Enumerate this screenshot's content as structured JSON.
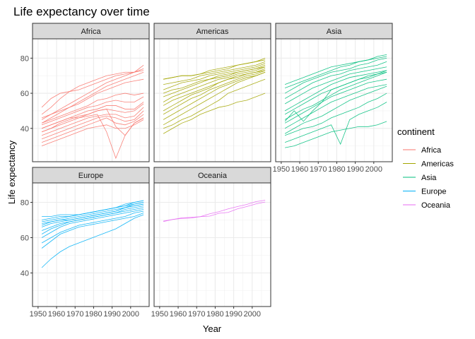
{
  "chart_data": {
    "type": "line",
    "title": "Life expectancy over time",
    "xlabel": "Year",
    "ylabel": "Life expectancy",
    "xlim": [
      1947,
      2010
    ],
    "ylim": [
      21,
      91
    ],
    "x_ticks": [
      1950,
      1960,
      1970,
      1980,
      1990,
      2000
    ],
    "y_ticks": [
      40,
      60,
      80
    ],
    "years": [
      1952,
      1957,
      1962,
      1967,
      1972,
      1977,
      1982,
      1987,
      1992,
      1997,
      2002,
      2007
    ],
    "legend": {
      "title": "continent",
      "placement": "right",
      "items": [
        "Africa",
        "Americas",
        "Asia",
        "Europe",
        "Oceania"
      ]
    },
    "colors": {
      "Africa": "#F8766D",
      "Americas": "#A3A500",
      "Asia": "#00BF7D",
      "Europe": "#00B0F6",
      "Oceania": "#E76BF3"
    },
    "grid": true,
    "facets": [
      {
        "name": "Africa",
        "series": [
          {
            "values": [
              30,
              32,
              34,
              36,
              38,
              40,
              41,
              42,
              40,
              40,
              42,
              45
            ]
          },
          {
            "values": [
              32,
              34,
              36,
              38,
              40,
              42,
              44,
              46,
              43,
              42,
              44,
              48
            ]
          },
          {
            "values": [
              34,
              36,
              38,
              40,
              42,
              44,
              46,
              47,
              46,
              44,
              45,
              50
            ]
          },
          {
            "values": [
              36,
              38,
              40,
              42,
              44,
              46,
              47,
              48,
              48,
              46,
              47,
              52
            ]
          },
          {
            "values": [
              38,
              40,
              42,
              44,
              46,
              48,
              50,
              51,
              50,
              49,
              50,
              54
            ]
          },
          {
            "values": [
              40,
              42,
              44,
              46,
              48,
              50,
              51,
              53,
              53,
              51,
              51,
              55
            ]
          },
          {
            "values": [
              42,
              44,
              46,
              48,
              50,
              52,
              53,
              55,
              56,
              55,
              55,
              58
            ]
          },
          {
            "values": [
              43,
              45,
              47,
              49,
              51,
              53,
              56,
              57,
              59,
              60,
              59,
              60
            ]
          },
          {
            "values": [
              46,
              48,
              50,
              52,
              54,
              57,
              60,
              62,
              64,
              66,
              67,
              68
            ]
          },
          {
            "values": [
              52,
              57,
              60,
              61,
              62,
              64,
              66,
              68,
              70,
              71,
              72,
              73
            ]
          },
          {
            "values": [
              43,
              46,
              49,
              52,
              55,
              58,
              61,
              64,
              66,
              68,
              70,
              72
            ]
          },
          {
            "values": [
              38,
              40,
              43,
              45,
              47,
              48,
              50,
              51,
              41,
              36,
              43,
              46
            ]
          },
          {
            "values": [
              40,
              42,
              44,
              46,
              46,
              47,
              48,
              38,
              23,
              36,
              43,
              46
            ]
          },
          {
            "values": [
              48,
              52,
              57,
              61,
              64,
              66,
              68,
              70,
              71,
              72,
              72,
              74
            ]
          },
          {
            "values": [
              45,
              48,
              51,
              54,
              57,
              60,
              63,
              66,
              68,
              70,
              72,
              76
            ]
          }
        ]
      },
      {
        "name": "Americas",
        "series": [
          {
            "values": [
              37,
              40,
              43,
              45,
              48,
              50,
              52,
              53,
              55,
              56,
              58,
              60
            ]
          },
          {
            "values": [
              40,
              42,
              45,
              47,
              50,
              53,
              56,
              60,
              62,
              64,
              66,
              68
            ]
          },
          {
            "values": [
              42,
              45,
              48,
              51,
              54,
              57,
              60,
              63,
              66,
              68,
              70,
              72
            ]
          },
          {
            "values": [
              45,
              48,
              51,
              54,
              57,
              60,
              63,
              65,
              67,
              69,
              70,
              72
            ]
          },
          {
            "values": [
              48,
              51,
              54,
              57,
              59,
              62,
              64,
              66,
              68,
              70,
              71,
              73
            ]
          },
          {
            "values": [
              50,
              53,
              56,
              59,
              61,
              63,
              66,
              68,
              69,
              71,
              72,
              73
            ]
          },
          {
            "values": [
              53,
              56,
              58,
              60,
              62,
              64,
              66,
              68,
              70,
              71,
              72,
              74
            ]
          },
          {
            "values": [
              55,
              58,
              60,
              62,
              64,
              66,
              68,
              69,
              71,
              72,
              73,
              75
            ]
          },
          {
            "values": [
              58,
              60,
              62,
              64,
              66,
              68,
              69,
              70,
              72,
              73,
              74,
              75
            ]
          },
          {
            "values": [
              60,
              62,
              63,
              65,
              67,
              68,
              70,
              71,
              72,
              73,
              74,
              76
            ]
          },
          {
            "values": [
              62,
              64,
              66,
              67,
              68,
              70,
              71,
              72,
              73,
              74,
              75,
              77
            ]
          },
          {
            "values": [
              65,
              66,
              67,
              68,
              70,
              71,
              72,
              73,
              74,
              75,
              76,
              78
            ]
          },
          {
            "values": [
              68,
              69,
              70,
              70,
              71,
              72,
              73,
              74,
              76,
              77,
              78,
              79
            ]
          },
          {
            "values": [
              68,
              69,
              70,
              70,
              71,
              73,
              74,
              75,
              76,
              77,
              78,
              80
            ]
          }
        ]
      },
      {
        "name": "Asia",
        "series": [
          {
            "values": [
              29,
              30,
              32,
              34,
              36,
              38,
              39,
              40,
              41,
              41,
              42,
              44
            ]
          },
          {
            "values": [
              32,
              34,
              36,
              38,
              40,
              42,
              31,
              45,
              48,
              50,
              52,
              55
            ]
          },
          {
            "values": [
              36,
              38,
              40,
              41,
              43,
              46,
              48,
              50,
              52,
              55,
              57,
              60
            ]
          },
          {
            "values": [
              37,
              40,
              43,
              45,
              47,
              50,
              53,
              56,
              58,
              60,
              62,
              64
            ]
          },
          {
            "values": [
              40,
              43,
              46,
              49,
              52,
              55,
              57,
              59,
              61,
              63,
              64,
              65
            ]
          },
          {
            "values": [
              43,
              46,
              49,
              52,
              55,
              58,
              60,
              62,
              64,
              66,
              67,
              68
            ]
          },
          {
            "values": [
              44,
              50,
              44,
              50,
              55,
              62,
              64,
              66,
              68,
              70,
              71,
              72
            ]
          },
          {
            "values": [
              45,
              48,
              51,
              53,
              56,
              59,
              62,
              64,
              66,
              68,
              70,
              72
            ]
          },
          {
            "values": [
              48,
              51,
              54,
              57,
              60,
              62,
              64,
              66,
              68,
              69,
              71,
              73
            ]
          },
          {
            "values": [
              50,
              53,
              56,
              59,
              62,
              65,
              67,
              69,
              70,
              71,
              72,
              73
            ]
          },
          {
            "values": [
              54,
              57,
              60,
              63,
              65,
              67,
              69,
              71,
              72,
              73,
              74,
              75
            ]
          },
          {
            "values": [
              57,
              60,
              63,
              66,
              68,
              70,
              71,
              73,
              74,
              75,
              76,
              78
            ]
          },
          {
            "values": [
              60,
              63,
              66,
              68,
              70,
              72,
              73,
              74,
              76,
              77,
              79,
              80
            ]
          },
          {
            "values": [
              63,
              65,
              67,
              69,
              71,
              73,
              75,
              76,
              78,
              79,
              81,
              82
            ]
          },
          {
            "values": [
              65,
              67,
              69,
              71,
              73,
              75,
              76,
              77,
              78,
              79,
              80,
              81
            ]
          }
        ]
      },
      {
        "name": "Europe",
        "series": [
          {
            "values": [
              43,
              48,
              52,
              55,
              57,
              59,
              61,
              63,
              65,
              68,
              71,
              73
            ]
          },
          {
            "values": [
              54,
              58,
              62,
              64,
              66,
              67,
              68,
              69,
              70,
              71,
              72,
              74
            ]
          },
          {
            "values": [
              57,
              60,
              63,
              65,
              67,
              68,
              69,
              70,
              71,
              72,
              74,
              75
            ]
          },
          {
            "values": [
              60,
              63,
              66,
              68,
              69,
              70,
              71,
              72,
              73,
              74,
              75,
              76
            ]
          },
          {
            "values": [
              62,
              65,
              67,
              69,
              70,
              71,
              72,
              73,
              74,
              75,
              76,
              77
            ]
          },
          {
            "values": [
              64,
              66,
              68,
              69,
              70,
              71,
              72,
              73,
              74,
              76,
              77,
              78
            ]
          },
          {
            "values": [
              66,
              68,
              69,
              70,
              71,
              72,
              73,
              74,
              75,
              77,
              78,
              79
            ]
          },
          {
            "values": [
              67,
              69,
              70,
              70,
              71,
              72,
              73,
              74,
              75,
              77,
              78,
              79
            ]
          },
          {
            "values": [
              68,
              69,
              70,
              71,
              72,
              73,
              74,
              75,
              76,
              77,
              79,
              80
            ]
          },
          {
            "values": [
              69,
              70,
              71,
              72,
              73,
              74,
              75,
              76,
              77,
              78,
              79,
              80
            ]
          },
          {
            "values": [
              70,
              71,
              72,
              72,
              73,
              74,
              75,
              76,
              77,
              78,
              80,
              81
            ]
          },
          {
            "values": [
              72,
              72,
              73,
              73,
              73,
              74,
              75,
              76,
              77,
              79,
              80,
              81
            ]
          }
        ]
      },
      {
        "name": "Oceania",
        "series": [
          {
            "values": [
              69.1,
              70.3,
              70.9,
              71.1,
              71.9,
              73.5,
              74.7,
              76.3,
              77.6,
              78.8,
              80.4,
              81.2
            ]
          },
          {
            "values": [
              69.4,
              70.3,
              71.2,
              71.5,
              71.9,
              72.2,
              73.8,
              74.3,
              76.3,
              77.6,
              79.1,
              80.2
            ]
          }
        ]
      }
    ]
  }
}
